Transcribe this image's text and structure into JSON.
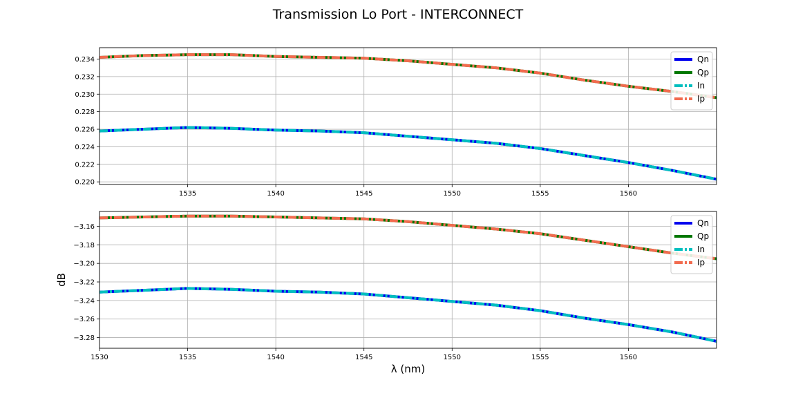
{
  "figure": {
    "title": "Transmission Lo Port - INTERCONNECT"
  },
  "chart_data": [
    {
      "type": "line",
      "title": "",
      "xlabel": "",
      "ylabel": "",
      "xlim": [
        1530,
        1565
      ],
      "ylim": [
        0.2197,
        0.2353
      ],
      "xticks": [
        1535,
        1540,
        1545,
        1550,
        1555,
        1560
      ],
      "yticks": [
        0.22,
        0.222,
        0.224,
        0.226,
        0.228,
        0.23,
        0.232,
        0.234
      ],
      "ytick_labels": [
        "0.220",
        "0.222",
        "0.224",
        "0.226",
        "0.228",
        "0.230",
        "0.232",
        "0.234"
      ],
      "grid": true,
      "legend": "top-right",
      "x": [
        1530,
        1532.5,
        1535,
        1537.5,
        1540,
        1542.5,
        1545,
        1547.5,
        1550,
        1552.5,
        1555,
        1557.5,
        1560,
        1562.5,
        1565
      ],
      "series": [
        {
          "name": "Qn",
          "color": "#0000ee",
          "style": "solid",
          "values": [
            0.2258,
            0.226,
            0.2262,
            0.2261,
            0.2259,
            0.2258,
            0.2256,
            0.2252,
            0.2248,
            0.2244,
            0.2238,
            0.223,
            0.2222,
            0.2213,
            0.2203
          ]
        },
        {
          "name": "Qp",
          "color": "#007700",
          "style": "solid",
          "values": [
            0.2342,
            0.2344,
            0.2345,
            0.2345,
            0.2343,
            0.2342,
            0.2341,
            0.2338,
            0.2334,
            0.233,
            0.2324,
            0.2316,
            0.2309,
            0.2303,
            0.2296
          ]
        },
        {
          "name": "In",
          "color": "#00bfbf",
          "style": "dashdot",
          "values": [
            0.2258,
            0.226,
            0.2262,
            0.2261,
            0.2259,
            0.2258,
            0.2256,
            0.2252,
            0.2248,
            0.2244,
            0.2238,
            0.223,
            0.2222,
            0.2213,
            0.2203
          ]
        },
        {
          "name": "Ip",
          "color": "#f26b4f",
          "style": "dashdot",
          "values": [
            0.2342,
            0.2344,
            0.2345,
            0.2345,
            0.2343,
            0.2342,
            0.2341,
            0.2338,
            0.2334,
            0.233,
            0.2324,
            0.2316,
            0.2309,
            0.2303,
            0.2296
          ]
        }
      ]
    },
    {
      "type": "line",
      "title": "",
      "xlabel": "λ (nm)",
      "ylabel": "dB",
      "xlim": [
        1530,
        1565
      ],
      "ylim": [
        -3.2915,
        -3.144
      ],
      "xticks": [
        1530,
        1535,
        1540,
        1545,
        1550,
        1555,
        1560
      ],
      "yticks": [
        -3.28,
        -3.26,
        -3.24,
        -3.22,
        -3.2,
        -3.18,
        -3.16
      ],
      "ytick_labels": [
        "−3.28",
        "−3.26",
        "−3.24",
        "−3.22",
        "−3.20",
        "−3.18",
        "−3.16"
      ],
      "grid": true,
      "legend": "top-right",
      "x": [
        1530,
        1532.5,
        1535,
        1537.5,
        1540,
        1542.5,
        1545,
        1547.5,
        1550,
        1552.5,
        1555,
        1557.5,
        1560,
        1562.5,
        1565
      ],
      "series": [
        {
          "name": "Qn",
          "color": "#0000ee",
          "style": "solid",
          "values": [
            -3.231,
            -3.229,
            -3.227,
            -3.228,
            -3.23,
            -3.231,
            -3.233,
            -3.237,
            -3.241,
            -3.245,
            -3.251,
            -3.259,
            -3.266,
            -3.274,
            -3.284
          ]
        },
        {
          "name": "Qp",
          "color": "#007700",
          "style": "solid",
          "values": [
            -3.151,
            -3.15,
            -3.149,
            -3.149,
            -3.15,
            -3.151,
            -3.152,
            -3.155,
            -3.159,
            -3.163,
            -3.168,
            -3.175,
            -3.182,
            -3.189,
            -3.195
          ]
        },
        {
          "name": "In",
          "color": "#00bfbf",
          "style": "dashdot",
          "values": [
            -3.231,
            -3.229,
            -3.227,
            -3.228,
            -3.23,
            -3.231,
            -3.233,
            -3.237,
            -3.241,
            -3.245,
            -3.251,
            -3.259,
            -3.266,
            -3.274,
            -3.284
          ]
        },
        {
          "name": "Ip",
          "color": "#f26b4f",
          "style": "dashdot",
          "values": [
            -3.151,
            -3.15,
            -3.149,
            -3.149,
            -3.15,
            -3.151,
            -3.152,
            -3.155,
            -3.159,
            -3.163,
            -3.168,
            -3.175,
            -3.182,
            -3.189,
            -3.195
          ]
        }
      ]
    }
  ]
}
